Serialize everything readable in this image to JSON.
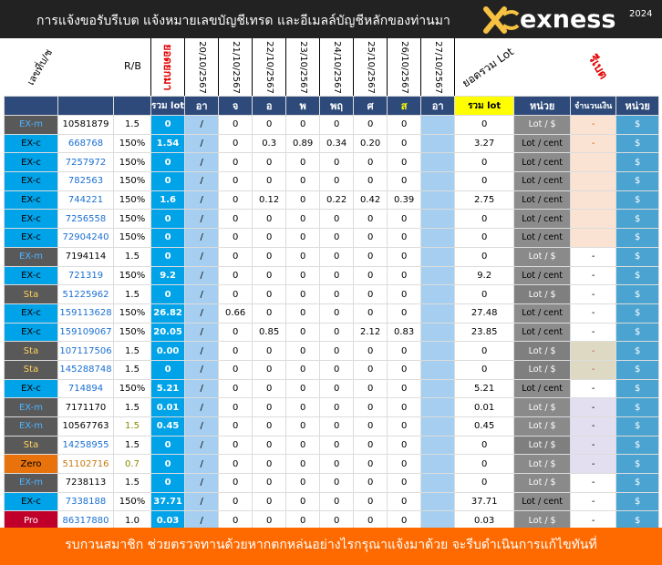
{
  "header": {
    "title": "การแจ้งขอรับรีเบต  แจ้งหมายเลขบัญชีเทรด และอีเมลล์บัญชีหลักของท่านมา",
    "brand": "exness",
    "year": "2024"
  },
  "columns": {
    "account_no": "เลขที่บ/ช",
    "rb": "R/B",
    "lot_prev": "ยอดยกมา",
    "dates": [
      "20/10/2567",
      "21/10/2567",
      "22/10/2567",
      "23/10/2567",
      "24/10/2567",
      "25/10/2567",
      "26/10/2567",
      "27/10/2567"
    ],
    "total_lot": "ยอดรวม Lot",
    "rebate": "รีเบต"
  },
  "subheader": {
    "sum_lot": "รวม lot",
    "days": [
      "อา",
      "จ",
      "อ",
      "พ",
      "พฤ",
      "ศ",
      "ส",
      "อา"
    ],
    "sum_lot2": "รวม lot",
    "unit": "หน่วย",
    "amount": "จำนวนเงิน",
    "unit2": "หน่วย"
  },
  "rows": [
    {
      "type": "EX-m",
      "acc": "10581879",
      "rb": "1.5",
      "lot": "0",
      "sep": "/",
      "d": [
        "0",
        "0",
        "0",
        "0",
        "0",
        "0"
      ],
      "total": "0",
      "unit": "Lot / $",
      "amount": "-",
      "cur": "$"
    },
    {
      "type": "EX-c",
      "acc": "668768",
      "rb": "150%",
      "lot": "1.54",
      "sep": "/",
      "d": [
        "0",
        "0.3",
        "0.89",
        "0.34",
        "0.20",
        "0"
      ],
      "total": "3.27",
      "unit": "Lot / cent",
      "amount": "-",
      "cur": "$"
    },
    {
      "type": "EX-c",
      "acc": "7257972",
      "rb": "150%",
      "lot": "0",
      "sep": "/",
      "d": [
        "0",
        "0",
        "0",
        "0",
        "0",
        "0"
      ],
      "total": "0",
      "unit": "Lot / cent",
      "amount": "",
      "cur": "$"
    },
    {
      "type": "EX-c",
      "acc": "782563",
      "rb": "150%",
      "lot": "0",
      "sep": "/",
      "d": [
        "0",
        "0",
        "0",
        "0",
        "0",
        "0"
      ],
      "total": "0",
      "unit": "Lot / cent",
      "amount": "",
      "cur": "$"
    },
    {
      "type": "EX-c",
      "acc": "744221",
      "rb": "150%",
      "lot": "1.6",
      "sep": "/",
      "d": [
        "0",
        "0.12",
        "0",
        "0.22",
        "0.42",
        "0.39"
      ],
      "total": "2.75",
      "unit": "Lot / cent",
      "amount": "",
      "cur": "$"
    },
    {
      "type": "EX-c",
      "acc": "7256558",
      "rb": "150%",
      "lot": "0",
      "sep": "/",
      "d": [
        "0",
        "0",
        "0",
        "0",
        "0",
        "0"
      ],
      "total": "0",
      "unit": "Lot / cent",
      "amount": "",
      "cur": "$"
    },
    {
      "type": "EX-c",
      "acc": "72904240",
      "rb": "150%",
      "lot": "0",
      "sep": "/",
      "d": [
        "0",
        "0",
        "0",
        "0",
        "0",
        "0"
      ],
      "total": "0",
      "unit": "Lot / cent",
      "amount": "",
      "cur": "$"
    },
    {
      "type": "EX-m",
      "acc": "7194114",
      "rb": "1.5",
      "lot": "0",
      "sep": "/",
      "d": [
        "0",
        "0",
        "0",
        "0",
        "0",
        "0"
      ],
      "total": "0",
      "unit": "Lot / $",
      "amount": "-",
      "cur": "$"
    },
    {
      "type": "EX-c",
      "acc": "721319",
      "rb": "150%",
      "lot": "9.2",
      "sep": "/",
      "d": [
        "0",
        "0",
        "0",
        "0",
        "0",
        "0"
      ],
      "total": "9.2",
      "unit": "Lot / cent",
      "amount": "-",
      "cur": "$"
    },
    {
      "type": "Sta",
      "acc": "51225962",
      "rb": "1.5",
      "lot": "0",
      "sep": "/",
      "d": [
        "0",
        "0",
        "0",
        "0",
        "0",
        "0"
      ],
      "total": "0",
      "unit": "Lot / $",
      "amount": "-",
      "cur": "$"
    },
    {
      "type": "EX-c",
      "acc": "159113628",
      "rb": "150%",
      "lot": "26.82",
      "sep": "/",
      "d": [
        "0.66",
        "0",
        "0",
        "0",
        "0",
        "0"
      ],
      "total": "27.48",
      "unit": "Lot / cent",
      "amount": "-",
      "cur": "$"
    },
    {
      "type": "EX-c",
      "acc": "159109067",
      "rb": "150%",
      "lot": "20.05",
      "sep": "/",
      "d": [
        "0",
        "0.85",
        "0",
        "0",
        "2.12",
        "0.83"
      ],
      "total": "23.85",
      "unit": "Lot / cent",
      "amount": "-",
      "cur": "$"
    },
    {
      "type": "Sta",
      "acc": "107117506",
      "rb": "1.5",
      "lot": "0.00",
      "sep": "/",
      "d": [
        "0",
        "0",
        "0",
        "0",
        "0",
        "0"
      ],
      "total": "0",
      "unit": "Lot / $",
      "amount": "-",
      "cur": "$"
    },
    {
      "type": "Sta",
      "acc": "145288748",
      "rb": "1.5",
      "lot": "0",
      "sep": "/",
      "d": [
        "0",
        "0",
        "0",
        "0",
        "0",
        "0"
      ],
      "total": "0",
      "unit": "Lot / $",
      "amount": "-",
      "cur": "$"
    },
    {
      "type": "EX-c",
      "acc": "714894",
      "rb": "150%",
      "lot": "5.21",
      "sep": "/",
      "d": [
        "0",
        "0",
        "0",
        "0",
        "0",
        "0"
      ],
      "total": "5.21",
      "unit": "Lot / cent",
      "amount": "-",
      "cur": "$"
    },
    {
      "type": "EX-m",
      "acc": "7171170",
      "rb": "1.5",
      "lot": "0.01",
      "sep": "/",
      "d": [
        "0",
        "0",
        "0",
        "0",
        "0",
        "0"
      ],
      "total": "0.01",
      "unit": "Lot / $",
      "amount": "-",
      "cur": "$"
    },
    {
      "type": "EX-m",
      "acc": "10567763",
      "rb": "1.5",
      "lot": "0.45",
      "sep": "/",
      "d": [
        "0",
        "0",
        "0",
        "0",
        "0",
        "0"
      ],
      "total": "0.45",
      "unit": "Lot / $",
      "amount": "-",
      "cur": "$"
    },
    {
      "type": "Sta",
      "acc": "14258955",
      "rb": "1.5",
      "lot": "0",
      "sep": "/",
      "d": [
        "0",
        "0",
        "0",
        "0",
        "0",
        "0"
      ],
      "total": "0",
      "unit": "Lot / $",
      "amount": "-",
      "cur": "$"
    },
    {
      "type": "Zero",
      "acc": "51102716",
      "rb": "0.7",
      "lot": "0",
      "sep": "/",
      "d": [
        "0",
        "0",
        "0",
        "0",
        "0",
        "0"
      ],
      "total": "0",
      "unit": "Lot / $",
      "amount": "-",
      "cur": "$"
    },
    {
      "type": "EX-m",
      "acc": "7238113",
      "rb": "1.5",
      "lot": "0",
      "sep": "/",
      "d": [
        "0",
        "0",
        "0",
        "0",
        "0",
        "0"
      ],
      "total": "0",
      "unit": "Lot / $",
      "amount": "-",
      "cur": "$"
    },
    {
      "type": "EX-c",
      "acc": "7338188",
      "rb": "150%",
      "lot": "37.71",
      "sep": "/",
      "d": [
        "0",
        "0",
        "0",
        "0",
        "0",
        "0"
      ],
      "total": "37.71",
      "unit": "Lot / cent",
      "amount": "-",
      "cur": "$"
    },
    {
      "type": "Pro",
      "acc": "86317880",
      "rb": "1.0",
      "lot": "0.03",
      "sep": "/",
      "d": [
        "0",
        "0",
        "0",
        "0",
        "0",
        "0"
      ],
      "total": "0.03",
      "unit": "Lot / $",
      "amount": "-",
      "cur": "$"
    }
  ],
  "footer": {
    "text": "รบกวนสมาชิก ช่วยตรวจทานด้วยหากตกหล่นอย่างไรกรุณาแจ้งมาด้วย จะรีบดำเนินการแก้ไขทันที่"
  },
  "colors": {
    "title_bg": "#222222",
    "orange": "#ff6a00",
    "blue": "#00a2e8",
    "navy": "#2e4a7a",
    "grey": "#595959",
    "unit_grey": "#8c8c8c",
    "red": "#e30000",
    "yellow": "#ffff00",
    "light_blue": "#a5cef0",
    "peach": "#fbe3d4",
    "tan": "#ddd9c3",
    "lavender": "#e4dff0",
    "teal": "#4aa3d0"
  }
}
